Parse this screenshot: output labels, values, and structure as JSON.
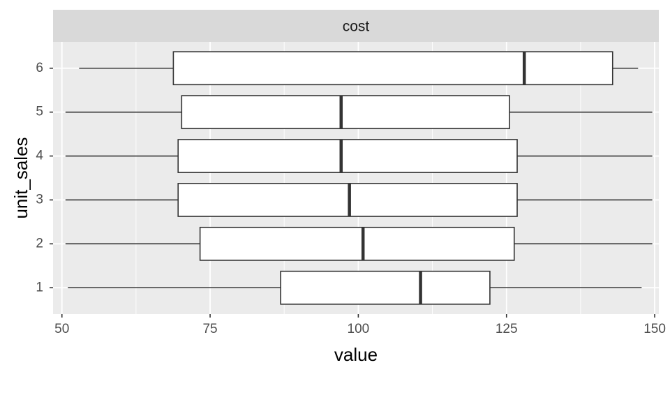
{
  "chart_data": {
    "type": "boxplot",
    "orientation": "horizontal",
    "facet_label": "cost",
    "xlabel": "value",
    "ylabel": "unit_sales",
    "xlim": [
      48.5,
      150.7
    ],
    "x_ticks": [
      50,
      75,
      100,
      125,
      150
    ],
    "x_tick_labels": [
      "50",
      "75",
      "100",
      "125",
      "150"
    ],
    "categories": [
      "1",
      "2",
      "3",
      "4",
      "5",
      "6"
    ],
    "boxes": [
      {
        "category": "1",
        "whisker_low": 51.0,
        "q1": 86.9,
        "median": 110.5,
        "q3": 122.2,
        "whisker_high": 147.8
      },
      {
        "category": "2",
        "whisker_low": 50.6,
        "q1": 73.3,
        "median": 100.8,
        "q3": 126.3,
        "whisker_high": 149.6
      },
      {
        "category": "3",
        "whisker_low": 50.6,
        "q1": 69.6,
        "median": 98.5,
        "q3": 126.8,
        "whisker_high": 149.6
      },
      {
        "category": "4",
        "whisker_low": 50.6,
        "q1": 69.6,
        "median": 97.1,
        "q3": 126.8,
        "whisker_high": 149.6
      },
      {
        "category": "5",
        "whisker_low": 50.6,
        "q1": 70.2,
        "median": 97.1,
        "q3": 125.5,
        "whisker_high": 149.6
      },
      {
        "category": "6",
        "whisker_low": 52.9,
        "q1": 68.8,
        "median": 128.0,
        "q3": 142.9,
        "whisker_high": 147.2
      }
    ],
    "grid": true,
    "legend": "none",
    "colors": {
      "panel_background": "#ebebeb",
      "grid_major": "#ffffff",
      "strip_background": "#d9d9d9",
      "box_fill": "#ffffff",
      "box_outline": "#333333"
    }
  }
}
